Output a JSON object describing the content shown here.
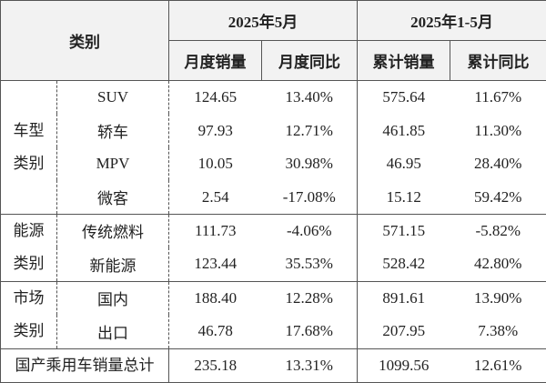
{
  "header": {
    "category": "类别",
    "period1": "2025年5月",
    "period2": "2025年1-5月",
    "columns": [
      "月度销量",
      "月度同比",
      "累计销量",
      "累计同比"
    ]
  },
  "groups": [
    {
      "label_lines": [
        "车型",
        "类别"
      ],
      "rows": [
        {
          "name": "SUV",
          "values": [
            "124.65",
            "13.40%",
            "575.64",
            "11.67%"
          ]
        },
        {
          "name": "轿车",
          "values": [
            "97.93",
            "12.71%",
            "461.85",
            "11.30%"
          ]
        },
        {
          "name": "MPV",
          "values": [
            "10.05",
            "30.98%",
            "46.95",
            "28.40%"
          ]
        },
        {
          "name": "微客",
          "values": [
            "2.54",
            "-17.08%",
            "15.12",
            "59.42%"
          ]
        }
      ]
    },
    {
      "label_lines": [
        "能源",
        "类别"
      ],
      "rows": [
        {
          "name": "传统燃料",
          "values": [
            "111.73",
            "-4.06%",
            "571.15",
            "-5.82%"
          ]
        },
        {
          "name": "新能源",
          "values": [
            "123.44",
            "35.53%",
            "528.42",
            "42.80%"
          ]
        }
      ]
    },
    {
      "label_lines": [
        "市场",
        "类别"
      ],
      "rows": [
        {
          "name": "国内",
          "values": [
            "188.40",
            "12.28%",
            "891.61",
            "13.90%"
          ]
        },
        {
          "name": "出口",
          "values": [
            "46.78",
            "17.68%",
            "207.95",
            "7.38%"
          ]
        }
      ]
    }
  ],
  "total": {
    "name": "国产乘用车销量总计",
    "values": [
      "235.18",
      "13.31%",
      "1099.56",
      "12.61%"
    ]
  }
}
